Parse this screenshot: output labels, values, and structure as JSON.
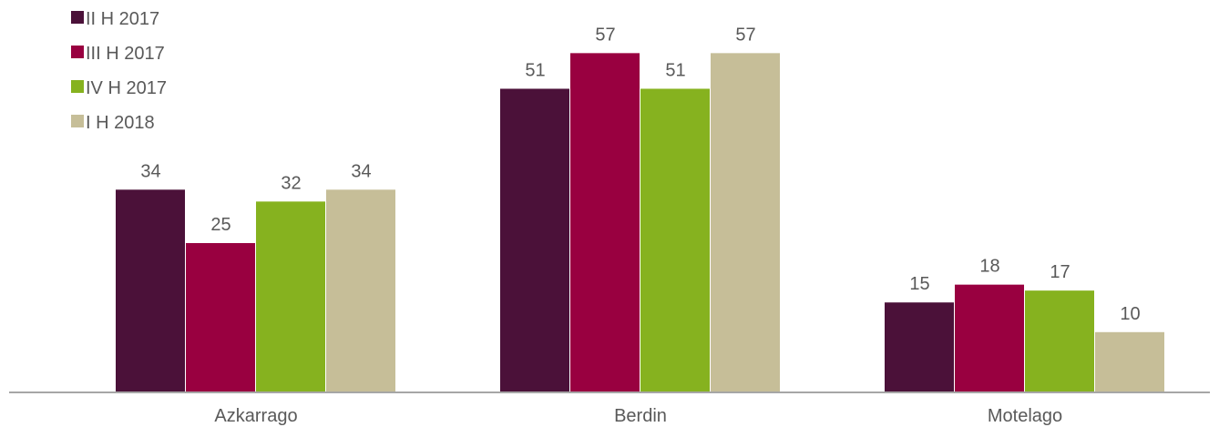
{
  "chart_data": {
    "type": "bar",
    "categories": [
      "Azkarrago",
      "Berdin",
      "Motelago"
    ],
    "series": [
      {
        "name": "II H 2017",
        "color": "#4B1139",
        "values": [
          34,
          51,
          15
        ]
      },
      {
        "name": "III H 2017",
        "color": "#990040",
        "values": [
          25,
          57,
          18
        ]
      },
      {
        "name": "IV H 2017",
        "color": "#86B21F",
        "values": [
          32,
          51,
          17
        ]
      },
      {
        "name": "I H 2018",
        "color": "#C6BE98",
        "values": [
          34,
          57,
          10
        ]
      }
    ],
    "data_labels": true,
    "legend_position": "top-left",
    "grid": false,
    "ylim": [
      0,
      60
    ]
  }
}
